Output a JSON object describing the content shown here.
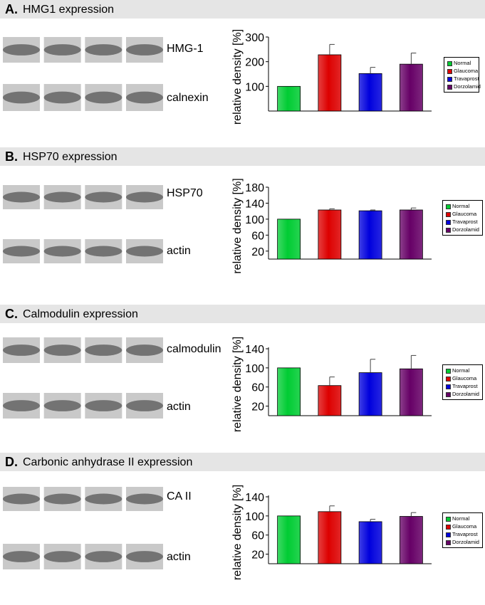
{
  "panels": [
    {
      "letter": "A.",
      "title": "HMG1 expression",
      "blot_labels": [
        "HMG-1",
        "calnexin"
      ]
    },
    {
      "letter": "B.",
      "title": "HSP70 expression",
      "blot_labels": [
        "HSP70",
        "actin"
      ]
    },
    {
      "letter": "C.",
      "title": "Calmodulin expression",
      "blot_labels": [
        "calmodulin",
        "actin"
      ]
    },
    {
      "letter": "D.",
      "title": "Carbonic anhydrase II expression",
      "blot_labels": [
        "CA II",
        "actin"
      ]
    }
  ],
  "colors": {
    "Normal": "#00cc33",
    "Glaucoma": "#dd0000",
    "Travaprost": "#0000dd",
    "Dorzolamid": "#660066"
  },
  "chart_data": [
    {
      "type": "bar",
      "title": "",
      "xlabel": "",
      "ylabel": "relative density [%]",
      "categories": [
        "Normal",
        "Glaucoma",
        "Travaprost",
        "Dorzolamid"
      ],
      "values": [
        100,
        228,
        152,
        190
      ],
      "errors": [
        0,
        42,
        25,
        45
      ],
      "ylim": [
        0,
        300
      ],
      "yticks": [
        100,
        200,
        300
      ],
      "legend": [
        "Normal",
        "Glaucoma",
        "Travaprost",
        "Dorzolamid"
      ],
      "legend_position": "right",
      "grid": false
    },
    {
      "type": "bar",
      "title": "",
      "xlabel": "",
      "ylabel": "relative density [%]",
      "categories": [
        "Normal",
        "Glaucoma",
        "Travaprost",
        "Dorzolamid"
      ],
      "values": [
        100,
        123,
        121,
        123
      ],
      "errors": [
        0,
        3,
        2,
        5
      ],
      "ylim": [
        0,
        180
      ],
      "yticks": [
        20,
        60,
        100,
        140,
        180
      ],
      "legend": [
        "Normal",
        "Glaucoma",
        "Travaprost",
        "Dorzolamid"
      ],
      "legend_position": "right",
      "grid": false
    },
    {
      "type": "bar",
      "title": "",
      "xlabel": "",
      "ylabel": "relative density [%]",
      "categories": [
        "Normal",
        "Glaucoma",
        "Travaprost",
        "Dorzolamid"
      ],
      "values": [
        100,
        63,
        90,
        98
      ],
      "errors": [
        0,
        18,
        28,
        28
      ],
      "ylim": [
        0,
        160
      ],
      "yticks": [
        20,
        60,
        100,
        140
      ],
      "legend": [
        "Normal",
        "Glaucoma",
        "Travaprost",
        "Dorzolamid"
      ],
      "legend_position": "right",
      "grid": false
    },
    {
      "type": "bar",
      "title": "",
      "xlabel": "",
      "ylabel": "relative density [%]",
      "categories": [
        "Normal",
        "Glaucoma",
        "Travaprost",
        "Dorzolamid"
      ],
      "values": [
        100,
        109,
        88,
        99
      ],
      "errors": [
        0,
        12,
        5,
        8
      ],
      "ylim": [
        0,
        160
      ],
      "yticks": [
        20,
        60,
        100,
        140
      ],
      "legend": [
        "Normal",
        "Glaucoma",
        "Travaprost",
        "Dorzolamid"
      ],
      "legend_position": "right",
      "grid": false
    }
  ]
}
